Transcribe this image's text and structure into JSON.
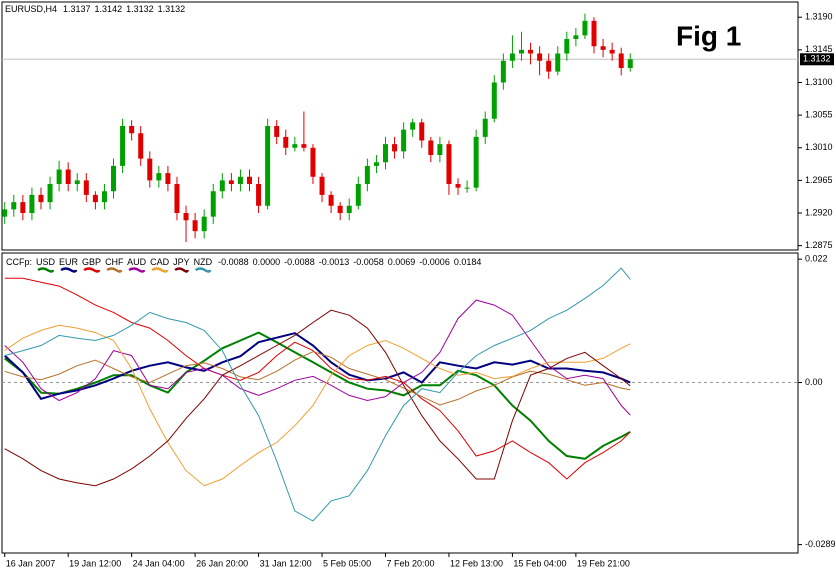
{
  "chart_data": [
    {
      "type": "candlestick",
      "title": "Fig 1",
      "symbol": "EURUSD,H4",
      "ohlc_header": [
        1.3137,
        1.3142,
        1.3132,
        1.3132
      ],
      "up_color": "#00a000",
      "down_color": "#e00000",
      "last": {
        "value": 1.3132,
        "label": "1.3132"
      },
      "xlim": [
        -0.3,
        87.5
      ],
      "ylim": [
        1.2869,
        1.3211
      ],
      "yticks": [
        {
          "value": 1.319,
          "label": "1.3190"
        },
        {
          "value": 1.3145,
          "label": "1.3145"
        },
        {
          "value": 1.31,
          "label": "1.3100"
        },
        {
          "value": 1.3055,
          "label": "1.3055"
        },
        {
          "value": 1.301,
          "label": "1.3010"
        },
        {
          "value": 1.2965,
          "label": "1.2965"
        },
        {
          "value": 1.292,
          "label": "1.2920"
        },
        {
          "value": 1.2875,
          "label": "1.2875"
        }
      ],
      "x": [
        0,
        1,
        2,
        3,
        4,
        5,
        6,
        7,
        8,
        9,
        10,
        11,
        12,
        13,
        14,
        15,
        16,
        17,
        18,
        19,
        20,
        21,
        22,
        23,
        24,
        25,
        26,
        27,
        28,
        29,
        30,
        31,
        32,
        33,
        34,
        35,
        36,
        37,
        38,
        39,
        40,
        41,
        42,
        43,
        44,
        45,
        46,
        47,
        48,
        49,
        50,
        51,
        52,
        53,
        54,
        55,
        56,
        57,
        58,
        59,
        60,
        61,
        62,
        63,
        64,
        65,
        66,
        67,
        68,
        69
      ],
      "ohlc": [
        [
          1.2915,
          1.2935,
          1.2905,
          1.2925
        ],
        [
          1.2925,
          1.2945,
          1.2915,
          1.2935
        ],
        [
          1.2935,
          1.2945,
          1.291,
          1.292
        ],
        [
          1.292,
          1.2955,
          1.291,
          1.2945
        ],
        [
          1.2945,
          1.2955,
          1.2925,
          1.2935
        ],
        [
          1.2935,
          1.297,
          1.2925,
          1.296
        ],
        [
          1.296,
          1.2992,
          1.295,
          1.298
        ],
        [
          1.298,
          1.299,
          1.295,
          1.296
        ],
        [
          1.296,
          1.2975,
          1.295,
          1.2965
        ],
        [
          1.2965,
          1.2975,
          1.2935,
          1.2945
        ],
        [
          1.2945,
          1.295,
          1.2925,
          1.2935
        ],
        [
          1.2935,
          1.296,
          1.2925,
          1.295
        ],
        [
          1.295,
          1.2995,
          1.294,
          1.2985
        ],
        [
          1.2985,
          1.305,
          1.2975,
          1.304
        ],
        [
          1.304,
          1.3048,
          1.302,
          1.303
        ],
        [
          1.303,
          1.304,
          1.2985,
          1.2995
        ],
        [
          1.2995,
          1.3005,
          1.2955,
          1.2965
        ],
        [
          1.2965,
          1.2985,
          1.2955,
          1.2975
        ],
        [
          1.2975,
          1.2985,
          1.295,
          1.296
        ],
        [
          1.296,
          1.297,
          1.291,
          1.292
        ],
        [
          1.292,
          1.293,
          1.288,
          1.291
        ],
        [
          1.291,
          1.292,
          1.2885,
          1.2895
        ],
        [
          1.2895,
          1.2925,
          1.2885,
          1.2915
        ],
        [
          1.2915,
          1.296,
          1.2905,
          1.295
        ],
        [
          1.295,
          1.2975,
          1.294,
          1.2965
        ],
        [
          1.2965,
          1.2975,
          1.295,
          1.296
        ],
        [
          1.296,
          1.298,
          1.295,
          1.297
        ],
        [
          1.297,
          1.298,
          1.295,
          1.296
        ],
        [
          1.296,
          1.297,
          1.292,
          1.293
        ],
        [
          1.293,
          1.305,
          1.2925,
          1.304
        ],
        [
          1.304,
          1.3048,
          1.3015,
          1.3025
        ],
        [
          1.3025,
          1.3035,
          1.3,
          1.301
        ],
        [
          1.301,
          1.3025,
          1.3005,
          1.3015
        ],
        [
          1.3015,
          1.306,
          1.3005,
          1.301
        ],
        [
          1.301,
          1.3015,
          1.296,
          1.297
        ],
        [
          1.297,
          1.2975,
          1.2935,
          1.2945
        ],
        [
          1.2945,
          1.295,
          1.292,
          1.293
        ],
        [
          1.293,
          1.2935,
          1.291,
          1.292
        ],
        [
          1.292,
          1.294,
          1.291,
          1.293
        ],
        [
          1.293,
          1.297,
          1.2925,
          1.296
        ],
        [
          1.296,
          1.2995,
          1.295,
          1.2985
        ],
        [
          1.2985,
          1.3,
          1.2975,
          1.299
        ],
        [
          1.299,
          1.3025,
          1.298,
          1.3015
        ],
        [
          1.3015,
          1.3025,
          1.2995,
          1.3005
        ],
        [
          1.3005,
          1.3045,
          1.2995,
          1.3035
        ],
        [
          1.3035,
          1.305,
          1.3025,
          1.3045
        ],
        [
          1.3045,
          1.305,
          1.301,
          1.302
        ],
        [
          1.302,
          1.3025,
          1.299,
          1.3
        ],
        [
          1.3,
          1.3025,
          1.299,
          1.3015
        ],
        [
          1.3015,
          1.302,
          1.2945,
          1.296
        ],
        [
          1.296,
          1.2968,
          1.2945,
          1.2955
        ],
        [
          1.2955,
          1.2965,
          1.2948,
          1.2955
        ],
        [
          1.2955,
          1.3035,
          1.295,
          1.3025
        ],
        [
          1.3025,
          1.306,
          1.3015,
          1.305
        ],
        [
          1.305,
          1.311,
          1.3045,
          1.31
        ],
        [
          1.31,
          1.314,
          1.309,
          1.313
        ],
        [
          1.313,
          1.3165,
          1.312,
          1.314
        ],
        [
          1.314,
          1.317,
          1.313,
          1.3145
        ],
        [
          1.3145,
          1.3155,
          1.3125,
          1.314
        ],
        [
          1.314,
          1.315,
          1.311,
          1.313
        ],
        [
          1.313,
          1.314,
          1.3105,
          1.3115
        ],
        [
          1.3115,
          1.315,
          1.311,
          1.314
        ],
        [
          1.314,
          1.317,
          1.313,
          1.316
        ],
        [
          1.316,
          1.3175,
          1.315,
          1.3165
        ],
        [
          1.3165,
          1.3195,
          1.316,
          1.3185
        ],
        [
          1.3185,
          1.319,
          1.314,
          1.315
        ],
        [
          1.315,
          1.316,
          1.3135,
          1.3145
        ],
        [
          1.3145,
          1.3155,
          1.313,
          1.314
        ],
        [
          1.314,
          1.3148,
          1.311,
          1.312
        ],
        [
          1.312,
          1.314,
          1.3115,
          1.3132
        ]
      ]
    },
    {
      "type": "line",
      "title": "CCFp:",
      "zero_line": true,
      "xlim": [
        -0.3,
        87.5
      ],
      "ylim": [
        -0.0304,
        0.0231
      ],
      "yticks": [
        0.022,
        {
          "value": 0,
          "label": "0.00"
        },
        -0.0289
      ],
      "xticks": [
        {
          "value": 0,
          "label": "16 Jan 2007"
        },
        {
          "value": 7,
          "label": "19 Jan 12:00"
        },
        {
          "value": 14,
          "label": "24 Jan 04:00"
        },
        {
          "value": 21,
          "label": "26 Jan 20:00"
        },
        {
          "value": 28,
          "label": "31 Jan 12:00"
        },
        {
          "value": 35,
          "label": "5 Feb 05:00"
        },
        {
          "value": 42,
          "label": "7 Feb 20:00"
        },
        {
          "value": 49,
          "label": "12 Feb 13:00"
        },
        {
          "value": 56,
          "label": "15 Feb 04:00"
        },
        {
          "value": 63,
          "label": "19 Feb 21:00"
        }
      ],
      "x": [
        0,
        2,
        4,
        6,
        8,
        10,
        12,
        14,
        16,
        18,
        20,
        22,
        24,
        26,
        28,
        30,
        32,
        34,
        36,
        38,
        40,
        42,
        44,
        46,
        48,
        50,
        52,
        54,
        56,
        58,
        60,
        62,
        64,
        66,
        68,
        69
      ],
      "series": [
        {
          "name": "USD",
          "color": "#008000",
          "width": 2,
          "current": -0.0088,
          "values": [
            0.0043,
            0.0018,
            -0.0018,
            -0.002,
            -0.0011,
            0.0,
            0.0013,
            0.0013,
            -0.0005,
            -0.0018,
            0.0018,
            0.0039,
            0.0061,
            0.0075,
            0.0089,
            0.0072,
            0.0054,
            0.0036,
            0.0018,
            0.0,
            -0.0011,
            -0.0014,
            -0.0023,
            -0.0005,
            -0.0005,
            0.0021,
            0.0013,
            -0.0005,
            -0.0041,
            -0.0068,
            -0.0104,
            -0.0131,
            -0.0136,
            -0.0113,
            -0.0097,
            -0.0088
          ]
        },
        {
          "name": "EUR",
          "color": "#000080",
          "width": 2,
          "current": {
            "value": 0,
            "label": "0.0000"
          },
          "values": [
            0.0048,
            0.0018,
            -0.0029,
            -0.002,
            -0.0014,
            -0.0005,
            0.0007,
            0.0021,
            0.003,
            0.0036,
            0.0027,
            0.0021,
            0.0036,
            0.0047,
            0.0072,
            0.008,
            0.0088,
            0.0066,
            0.0036,
            0.0014,
            0.0004,
            0.0007,
            0.0018,
            0.0,
            0.0036,
            0.003,
            0.0025,
            0.0036,
            0.0032,
            0.0039,
            0.0025,
            0.0025,
            0.0021,
            0.0018,
            0.0007,
            0.0
          ]
        },
        {
          "name": "GBP",
          "color": "#e00000",
          "width": 1,
          "current": -0.0088,
          "values": [
            0.0186,
            0.0186,
            0.0179,
            0.0172,
            0.0156,
            0.0138,
            0.0125,
            0.0107,
            0.0097,
            0.0075,
            0.0048,
            0.0025,
            0.0013,
            0.0004,
            0.0018,
            0.0048,
            0.0072,
            0.0057,
            0.0025,
            0.0007,
            0.0004,
            0.0011,
            0.0,
            -0.0029,
            -0.005,
            -0.0086,
            -0.0131,
            -0.0122,
            -0.0104,
            -0.0125,
            -0.0143,
            -0.0172,
            -0.0143,
            -0.0125,
            -0.0104,
            -0.0088
          ]
        },
        {
          "name": "CHF",
          "color": "#b8702a",
          "width": 1,
          "current": -0.0013,
          "values": [
            0.002,
            0.001,
            0.0005,
            0.0015,
            0.003,
            0.004,
            0.0025,
            0.001,
            0.0,
            0.0015,
            0.003,
            0.0035,
            0.0025,
            0.001,
            0.0005,
            0.002,
            0.004,
            0.0055,
            0.0045,
            0.0025,
            0.0015,
            0.0005,
            -0.001,
            -0.0025,
            -0.004,
            -0.003,
            -0.0015,
            -0.0005,
            0.001,
            0.002,
            0.0015,
            0.0005,
            -0.0005,
            0.0,
            -0.001,
            -0.0013
          ]
        },
        {
          "name": "AUD",
          "color": "#a000a0",
          "width": 1,
          "current": -0.0058,
          "values": [
            0.0066,
            0.0036,
            -0.0011,
            -0.0032,
            -0.0018,
            0.0007,
            0.0057,
            0.0048,
            -0.0005,
            -0.0011,
            0.0018,
            0.0025,
            0.0013,
            -0.0011,
            -0.0023,
            -0.0011,
            0.0004,
            0.0011,
            -0.0005,
            -0.0023,
            -0.0032,
            -0.0025,
            0.0,
            0.0018,
            0.0054,
            0.0114,
            0.0147,
            0.0138,
            0.012,
            0.0075,
            0.003,
            0.0007,
            0.0013,
            0.0007,
            -0.0041,
            -0.0058
          ]
        },
        {
          "name": "CAD",
          "color": "#f0a030",
          "width": 1,
          "current": 0.0069,
          "values": [
            0.0057,
            0.0079,
            0.0093,
            0.0102,
            0.0097,
            0.0089,
            0.0075,
            0.0025,
            -0.0047,
            -0.0107,
            -0.0157,
            -0.0184,
            -0.0172,
            -0.0148,
            -0.0125,
            -0.0107,
            -0.0077,
            -0.0041,
            0.0013,
            0.0048,
            0.0066,
            0.0075,
            0.0061,
            0.0043,
            0.0025,
            0.0013,
            0.0018,
            0.0007,
            0.0011,
            0.0025,
            0.0036,
            0.0036,
            0.0036,
            0.0043,
            0.0061,
            0.0069
          ]
        },
        {
          "name": "JPY",
          "color": "#800000",
          "width": 1,
          "current": -0.0006,
          "values": [
            -0.0118,
            -0.0136,
            -0.0157,
            -0.0172,
            -0.0179,
            -0.0184,
            -0.0172,
            -0.0154,
            -0.0131,
            -0.0104,
            -0.0064,
            -0.0029,
            0.0013,
            0.003,
            0.0048,
            0.0066,
            0.0084,
            0.0107,
            0.0129,
            0.012,
            0.0097,
            0.0054,
            -0.0005,
            -0.0059,
            -0.0104,
            -0.0136,
            -0.0172,
            -0.0172,
            -0.0068,
            0.0013,
            0.0025,
            0.0043,
            0.0054,
            0.003,
            0.0007,
            -0.0006
          ]
        },
        {
          "name": "NZD",
          "color": "#3399aa",
          "width": 1,
          "current": 0.0184,
          "values": [
            0.0048,
            0.0057,
            0.0066,
            0.0084,
            0.0079,
            0.0075,
            0.0084,
            0.0102,
            0.0125,
            0.0114,
            0.0107,
            0.0093,
            0.0057,
            -0.0005,
            -0.0059,
            -0.014,
            -0.0229,
            -0.0247,
            -0.0211,
            -0.0202,
            -0.0157,
            -0.0095,
            -0.0041,
            -0.0011,
            -0.0018,
            0.0018,
            0.0048,
            0.0066,
            0.0079,
            0.0093,
            0.0114,
            0.0129,
            0.015,
            0.0173,
            0.0204,
            0.0184
          ]
        }
      ]
    }
  ]
}
